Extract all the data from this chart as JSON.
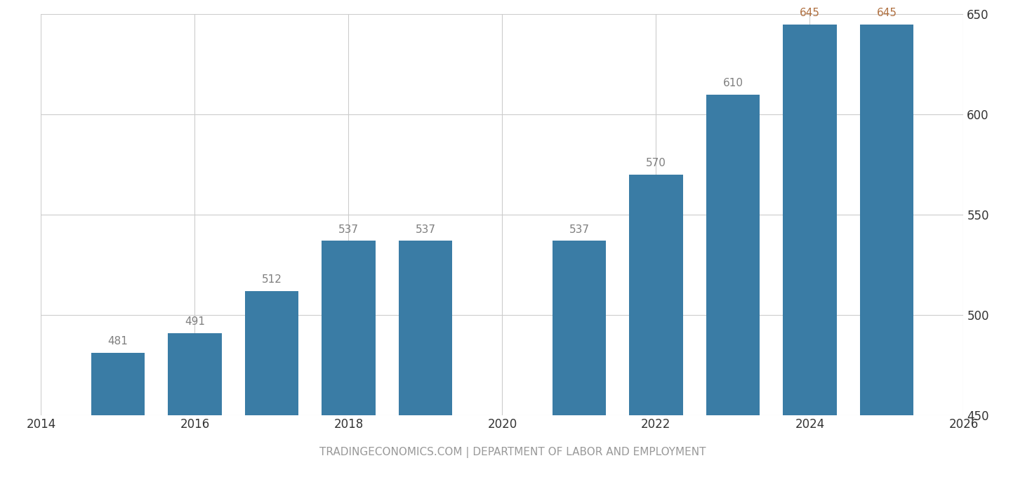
{
  "bars": [
    {
      "year": 2015,
      "value": 481
    },
    {
      "year": 2016,
      "value": 491
    },
    {
      "year": 2017,
      "value": 512
    },
    {
      "year": 2018,
      "value": 537
    },
    {
      "year": 2019,
      "value": 537
    },
    {
      "year": 2021,
      "value": 537
    },
    {
      "year": 2022,
      "value": 570
    },
    {
      "year": 2023,
      "value": 610
    },
    {
      "year": 2024,
      "value": 645
    },
    {
      "year": 2025,
      "value": 645
    }
  ],
  "bar_color": "#3a7ca5",
  "label_color_normal": "#7f7f7f",
  "label_color_projected": "#b07040",
  "xlim": [
    2014,
    2026
  ],
  "ylim": [
    450,
    650
  ],
  "yticks": [
    450,
    500,
    550,
    600,
    650
  ],
  "xticks": [
    2014,
    2016,
    2018,
    2020,
    2022,
    2024,
    2026
  ],
  "background_color": "#ffffff",
  "grid_color": "#cccccc",
  "footer_text": "TRADINGECONOMICS.COM | DEPARTMENT OF LABOR AND EMPLOYMENT",
  "footer_color": "#999999",
  "bar_width": 0.7,
  "projected_years": [
    2024,
    2025
  ],
  "label_fontsize": 11,
  "tick_fontsize": 12,
  "footer_fontsize": 11
}
